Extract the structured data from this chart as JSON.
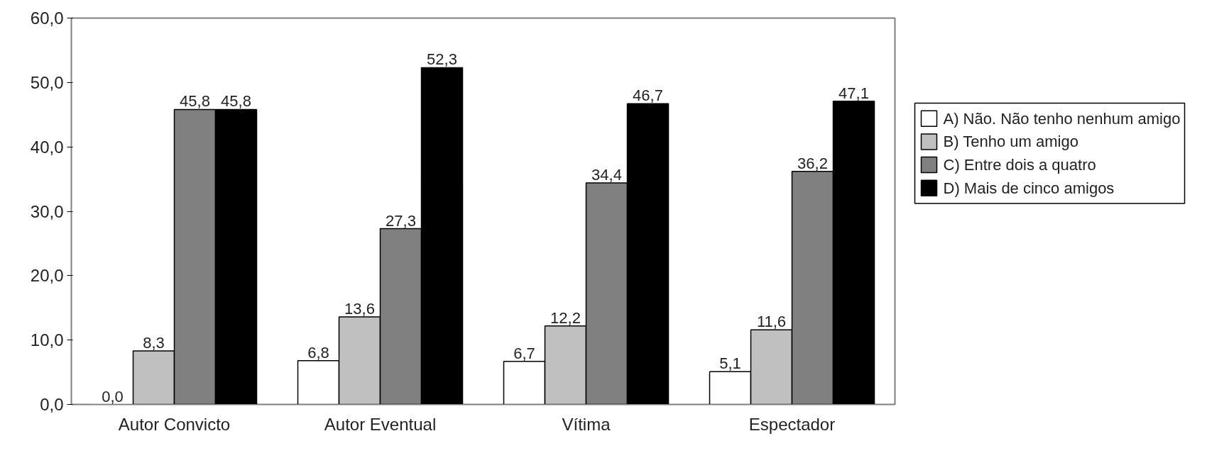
{
  "chart_data": {
    "type": "bar",
    "categories": [
      "Autor Convicto",
      "Autor Eventual",
      "Vítima",
      "Espectador"
    ],
    "series": [
      {
        "name": "A) Não. Não tenho nenhum amigo",
        "color": "#ffffff",
        "values": [
          0.0,
          6.8,
          6.7,
          5.1
        ],
        "value_labels": [
          "0,0",
          "6,8",
          "6,7",
          "5,1"
        ]
      },
      {
        "name": "B) Tenho um amigo",
        "color": "#c0c0c0",
        "values": [
          8.3,
          13.6,
          12.2,
          11.6
        ],
        "value_labels": [
          "8,3",
          "13,6",
          "12,2",
          "11,6"
        ]
      },
      {
        "name": "C) Entre dois a quatro",
        "color": "#808080",
        "values": [
          45.8,
          27.3,
          34.4,
          36.2
        ],
        "value_labels": [
          "45,8",
          "27,3",
          "34,4",
          "36,2"
        ]
      },
      {
        "name": "D) Mais de cinco amigos",
        "color": "#000000",
        "values": [
          45.8,
          52.3,
          46.7,
          47.1
        ],
        "value_labels": [
          "45,8",
          "52,3",
          "46,7",
          "47,1"
        ]
      }
    ],
    "ylim": [
      0,
      60
    ],
    "yticks": [
      {
        "value": 0,
        "label": "0,0"
      },
      {
        "value": 10,
        "label": "10,0"
      },
      {
        "value": 20,
        "label": "20,0"
      },
      {
        "value": 30,
        "label": "30,0"
      },
      {
        "value": 40,
        "label": "40,0"
      },
      {
        "value": 50,
        "label": "50,0"
      },
      {
        "value": 60,
        "label": "60,0"
      }
    ],
    "grid": false,
    "legend": "right"
  }
}
